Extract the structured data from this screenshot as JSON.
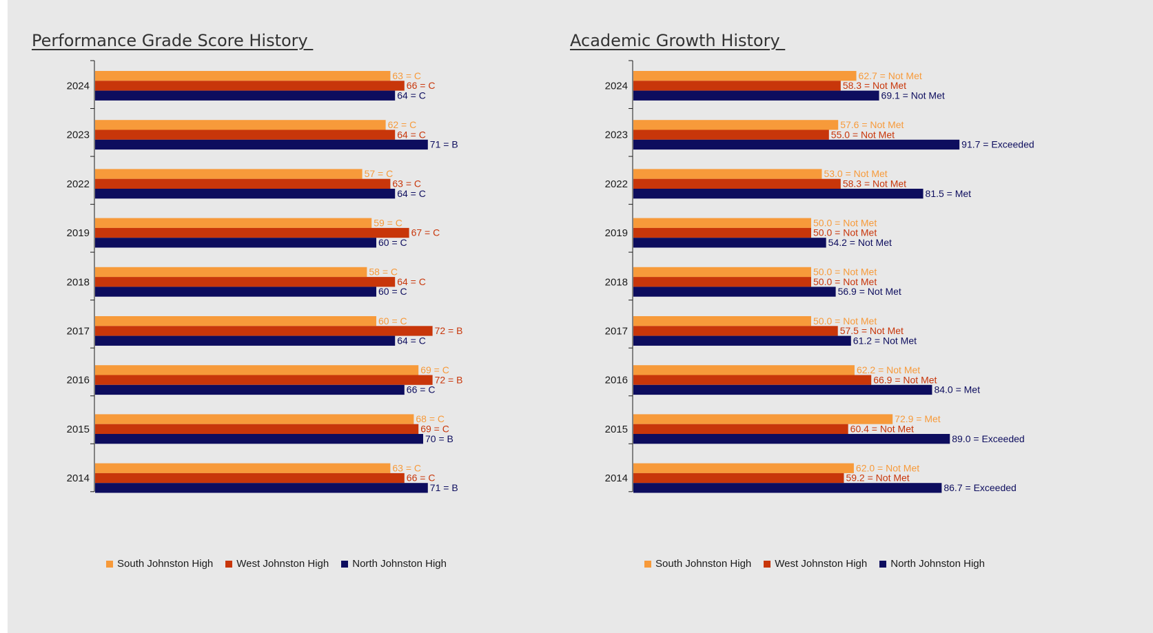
{
  "colors": {
    "south": "#f79a3a",
    "west": "#c8360a",
    "north": "#0d0d5e"
  },
  "series_names": [
    "South Johnston High",
    "West Johnston High",
    "North Johnston High"
  ],
  "chart_data": [
    {
      "type": "bar",
      "orientation": "horizontal",
      "title": "Performance Grade Score History ",
      "categories": [
        "2024",
        "2023",
        "2022",
        "2019",
        "2018",
        "2017",
        "2016",
        "2015",
        "2014"
      ],
      "xlim": [
        0,
        100
      ],
      "legend": "bottom",
      "series": [
        {
          "name": "South Johnston High",
          "values": [
            63,
            62,
            57,
            59,
            58,
            60,
            69,
            68,
            63
          ],
          "labels": [
            "63 = C",
            "62 = C",
            "57 = C",
            "59 = C",
            "58 = C",
            "60 = C",
            "69 = C",
            "68 = C",
            "63 = C"
          ]
        },
        {
          "name": "West Johnston High",
          "values": [
            66,
            64,
            63,
            67,
            64,
            72,
            72,
            69,
            66
          ],
          "labels": [
            "66 = C",
            "64 = C",
            "63 = C",
            "67 = C",
            "64 = C",
            "72 = B",
            "72 = B",
            "69 = C",
            "66 = C"
          ]
        },
        {
          "name": "North Johnston High",
          "values": [
            64,
            71,
            64,
            60,
            60,
            64,
            66,
            70,
            71
          ],
          "labels": [
            "64 = C",
            "71 = B",
            "64 = C",
            "60 = C",
            "60 = C",
            "64 = C",
            "66 = C",
            "70 = B",
            "71 = B"
          ]
        }
      ]
    },
    {
      "type": "bar",
      "orientation": "horizontal",
      "title": "Academic Growth History ",
      "categories": [
        "2024",
        "2023",
        "2022",
        "2019",
        "2018",
        "2017",
        "2016",
        "2015",
        "2014"
      ],
      "xlim": [
        0,
        100
      ],
      "legend": "bottom",
      "series": [
        {
          "name": "South Johnston High",
          "values": [
            62.7,
            57.6,
            53.0,
            50.0,
            50.0,
            50.0,
            62.2,
            72.9,
            62.0
          ],
          "labels": [
            "62.7 = Not Met",
            "57.6 = Not Met",
            "53.0 = Not Met",
            "50.0 = Not Met",
            "50.0 = Not Met",
            "50.0 = Not Met",
            "62.2 = Not Met",
            "72.9 = Met",
            "62.0 = Not Met"
          ]
        },
        {
          "name": "West Johnston High",
          "values": [
            58.3,
            55.0,
            58.3,
            50.0,
            50.0,
            57.5,
            66.9,
            60.4,
            59.2
          ],
          "labels": [
            "58.3 = Not Met",
            "55.0 = Not Met",
            "58.3 = Not Met",
            "50.0 = Not Met",
            "50.0 = Not Met",
            "57.5 = Not Met",
            "66.9 = Not Met",
            "60.4 = Not Met",
            "59.2 = Not Met"
          ]
        },
        {
          "name": "North Johnston High",
          "values": [
            69.1,
            91.7,
            81.5,
            54.2,
            56.9,
            61.2,
            84.0,
            89.0,
            86.7
          ],
          "labels": [
            "69.1 = Not Met",
            "91.7 = Exceeded",
            "81.5 = Met",
            "54.2 = Not Met",
            "56.9 = Not Met",
            "61.2 = Not Met",
            "84.0 = Met",
            "89.0 = Exceeded",
            "86.7 = Exceeded"
          ]
        }
      ]
    }
  ]
}
